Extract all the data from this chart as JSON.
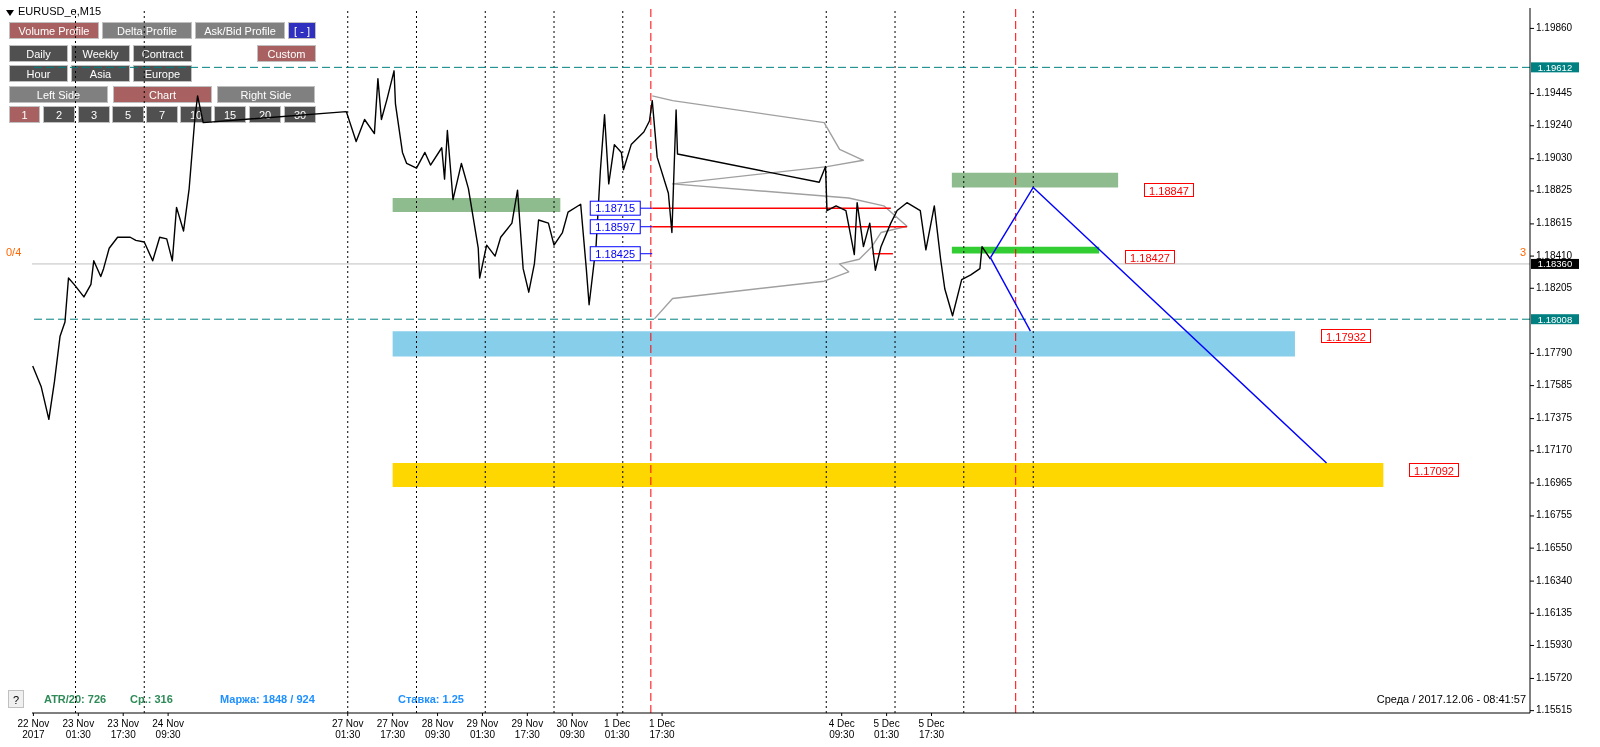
{
  "chart_data": {
    "type": "line",
    "title": "EURUSD_e,M15",
    "xlim": [
      "2017-11-22T09:00",
      "2017-12-14T14:45"
    ],
    "ylim": [
      1.155,
      1.1999
    ],
    "xticks": [
      {
        "value": "2017-11-22T09:30",
        "label": "22 Nov 2017"
      },
      {
        "value": "2017-11-23T01:30",
        "label": "23 Nov 01:30"
      },
      {
        "value": "2017-11-23T17:30",
        "label": "23 Nov 17:30"
      },
      {
        "value": "2017-11-24T09:30",
        "label": "24 Nov 09:30"
      },
      {
        "value": "2017-11-27T01:30",
        "label": "27 Nov 01:30"
      },
      {
        "value": "2017-11-27T17:30",
        "label": "27 Nov 17:30"
      },
      {
        "value": "2017-11-28T09:30",
        "label": "28 Nov 09:30"
      },
      {
        "value": "2017-11-29T01:30",
        "label": "29 Nov 01:30"
      },
      {
        "value": "2017-11-29T17:30",
        "label": "29 Nov 17:30"
      },
      {
        "value": "2017-11-30T09:30",
        "label": "30 Nov 09:30"
      },
      {
        "value": "2017-12-01T01:30",
        "label": "1 Dec 01:30"
      },
      {
        "value": "2017-12-01T17:30",
        "label": "1 Dec 17:30"
      },
      {
        "value": "2017-12-04T09:30",
        "label": "4 Dec 09:30"
      },
      {
        "value": "2017-12-05T01:30",
        "label": "5 Dec 01:30"
      },
      {
        "value": "2017-12-05T17:30",
        "label": "5 Dec 17:30"
      }
    ],
    "yticks": [
      {
        "value": 1.1986,
        "label": "1.19860"
      },
      {
        "value": 1.19445,
        "label": "1.19445"
      },
      {
        "value": 1.1924,
        "label": "1.19240"
      },
      {
        "value": 1.1903,
        "label": "1.19030"
      },
      {
        "value": 1.18825,
        "label": "1.18825"
      },
      {
        "value": 1.18615,
        "label": "1.18615"
      },
      {
        "value": 1.1841,
        "label": "1.18410"
      },
      {
        "value": 1.18205,
        "label": "1.18205"
      },
      {
        "value": 1.1779,
        "label": "1.17790"
      },
      {
        "value": 1.17585,
        "label": "1.17585"
      },
      {
        "value": 1.17375,
        "label": "1.17375"
      },
      {
        "value": 1.1717,
        "label": "1.17170"
      },
      {
        "value": 1.16965,
        "label": "1.16965"
      },
      {
        "value": 1.16755,
        "label": "1.16755"
      },
      {
        "value": 1.1655,
        "label": "1.16550"
      },
      {
        "value": 1.1634,
        "label": "1.16340"
      },
      {
        "value": 1.16135,
        "label": "1.16135"
      },
      {
        "value": 1.1593,
        "label": "1.15930"
      },
      {
        "value": 1.1572,
        "label": "1.15720"
      },
      {
        "value": 1.15515,
        "label": "1.15515"
      }
    ],
    "series": [
      {
        "type": "area",
        "color": "#8fbc8f",
        "x": [
          "2017-11-27T17:30",
          "2017-11-30T05:15"
        ],
        "values": [
          null,
          null
        ],
        "lower": [
          1.1869,
          1.1869
        ],
        "upper": [
          1.1878,
          1.1878
        ]
      },
      {
        "type": "area",
        "color": "#8fbc8f",
        "x": [
          "2017-12-06T00:45",
          "2017-12-08T12:00"
        ],
        "values": [
          null,
          null
        ],
        "lower": [
          1.18847,
          1.18847
        ],
        "upper": [
          1.1894,
          1.1894
        ]
      },
      {
        "type": "area",
        "color": "#32cd32",
        "x": [
          "2017-12-06T00:45",
          "2017-12-08T05:15"
        ],
        "values": [
          null,
          null
        ],
        "lower": [
          1.18427,
          1.18427
        ],
        "upper": [
          1.1847,
          1.1847
        ]
      },
      {
        "type": "area",
        "color": "#87ceeb",
        "x": [
          "2017-11-27T17:30",
          "2017-12-11T03:00"
        ],
        "values": [
          null,
          null
        ],
        "lower": [
          1.1777,
          1.1777
        ],
        "upper": [
          1.17932,
          1.17932
        ]
      },
      {
        "type": "area",
        "color": "#ffd700",
        "x": [
          "2017-11-27T17:30",
          "2017-12-12T10:30"
        ],
        "values": [
          null,
          null
        ],
        "lower": [
          1.1694,
          1.1694
        ],
        "upper": [
          1.17092,
          1.17092
        ]
      },
      {
        "type": "line",
        "color": "#a0a0a0",
        "x": [
          "2017-12-01T14:00",
          "2017-12-01T21:15",
          "2017-12-04T03:15",
          "2017-12-04T08:45",
          "2017-12-04T17:15",
          "2017-12-04T04:15",
          "2017-12-01T21:15",
          "2017-12-04T12:00",
          "2017-12-05T00:30",
          "2017-12-05T08:45",
          "2017-12-04T23:30",
          "2017-12-04T20:15",
          "2017-12-04T15:45",
          "2017-12-04T08:45",
          "2017-12-04T12:00",
          "2017-12-04T03:15",
          "2017-12-01T21:15",
          "2017-12-01T14:45"
        ],
        "values": [
          1.1943,
          1.194,
          1.1926,
          1.1909,
          1.1902,
          1.1898,
          1.1887,
          1.1878,
          1.1873,
          1.186,
          1.1856,
          1.1847,
          1.1839,
          1.1836,
          1.1831,
          1.1825,
          1.1814,
          1.1801
        ]
      },
      {
        "type": "line",
        "color": "#ff0000",
        "x": [
          "2017-12-01T14:00",
          "2017-12-05T03:00"
        ],
        "values": [
          1.18715,
          1.18715
        ]
      },
      {
        "type": "line",
        "color": "#ff0000",
        "x": [
          "2017-12-01T14:00",
          "2017-12-05T08:45"
        ],
        "values": [
          1.18597,
          1.18597
        ]
      },
      {
        "type": "line",
        "color": "#ff0000",
        "x": [
          "2017-12-04T20:30",
          "2017-12-05T03:45"
        ],
        "values": [
          1.18425,
          1.18425
        ]
      },
      {
        "color": "#000000",
        "x": [
          "2017-11-22T09:15",
          "2017-11-22T12:15",
          "2017-11-22T15:00",
          "2017-11-22T17:00",
          "2017-11-22T19:00",
          "2017-11-22T20:45",
          "2017-11-22T22:00",
          "2017-11-23T00:00",
          "2017-11-23T03:30",
          "2017-11-23T06:00",
          "2017-11-23T07:00",
          "2017-11-23T09:30",
          "2017-11-23T10:30",
          "2017-11-23T12:30",
          "2017-11-23T15:30",
          "2017-11-23T20:00",
          "2017-11-23T22:00",
          "2017-11-24T01:00",
          "2017-11-24T04:00",
          "2017-11-24T06:30",
          "2017-11-24T09:00",
          "2017-11-24T11:00",
          "2017-11-24T12:30",
          "2017-11-24T15:00",
          "2017-11-24T17:00",
          "2017-11-24T19:00",
          "2017-11-24T20:00",
          "2017-11-24T22:00",
          "2017-11-27T01:00",
          "2017-11-27T04:30",
          "2017-11-27T07:30",
          "2017-11-27T11:00",
          "2017-11-27T12:15",
          "2017-11-27T13:30",
          "2017-11-27T15:30",
          "2017-11-27T18:00",
          "2017-11-27T18:30",
          "2017-11-27T21:00",
          "2017-11-27T22:30",
          "2017-11-28T02:00",
          "2017-11-28T05:00",
          "2017-11-28T07:00",
          "2017-11-28T11:00",
          "2017-11-28T12:00",
          "2017-11-28T13:00",
          "2017-11-28T15:00",
          "2017-11-28T18:00",
          "2017-11-28T20:30",
          "2017-11-29T00:00",
          "2017-11-29T00:30",
          "2017-11-29T03:00",
          "2017-11-29T06:00",
          "2017-11-29T08:00",
          "2017-11-29T12:00",
          "2017-11-29T14:00",
          "2017-11-29T16:00",
          "2017-11-29T18:00",
          "2017-11-29T20:00",
          "2017-11-29T21:30",
          "2017-11-30T01:00",
          "2017-11-30T03:00",
          "2017-11-30T06:00",
          "2017-11-30T08:00",
          "2017-11-30T12:30",
          "2017-11-30T14:30",
          "2017-11-30T15:30",
          "2017-11-30T18:00",
          "2017-11-30T19:30",
          "2017-11-30T21:00",
          "2017-11-30T22:30",
          "2017-12-01T00:30",
          "2017-12-01T03:00",
          "2017-12-01T03:45",
          "2017-12-01T06:30",
          "2017-12-01T11:00",
          "2017-12-01T13:00",
          "2017-12-01T14:00",
          "2017-12-01T15:45",
          "2017-12-01T19:45",
          "2017-12-01T21:00",
          "2017-12-01T22:30",
          "2017-12-01T23:00",
          "2017-12-04T01:30",
          "2017-12-04T03:45",
          "2017-12-04T04:15",
          "2017-12-04T07:30",
          "2017-12-04T11:00",
          "2017-12-04T14:00",
          "2017-12-04T15:00",
          "2017-12-04T17:15",
          "2017-12-04T19:30",
          "2017-12-04T21:30",
          "2017-12-04T23:30",
          "2017-12-05T03:00",
          "2017-12-05T05:15",
          "2017-12-05T08:45",
          "2017-12-05T13:30",
          "2017-12-05T15:30",
          "2017-12-05T18:30",
          "2017-12-05T20:45",
          "2017-12-05T22:15",
          "2017-12-06T01:00",
          "2017-12-06T04:15",
          "2017-12-06T07:30",
          "2017-12-06T10:45",
          "2017-12-06T11:30",
          "2017-12-06T14:30"
        ],
        "values": [
          1.1771,
          1.1758,
          1.1737,
          1.1761,
          1.179,
          1.1799,
          1.1827,
          1.1823,
          1.1815,
          1.1823,
          1.1838,
          1.1828,
          1.1833,
          1.1846,
          1.1853,
          1.1853,
          1.1851,
          1.185,
          1.1838,
          1.1853,
          1.1852,
          1.1838,
          1.1872,
          1.1857,
          1.1884,
          1.1928,
          1.1943,
          1.1926,
          1.1933,
          1.1914,
          1.1928,
          1.1919,
          1.1954,
          1.1928,
          1.1941,
          1.1959,
          1.1938,
          1.1907,
          1.19,
          1.1897,
          1.1907,
          1.1899,
          1.191,
          1.189,
          1.1921,
          1.1877,
          1.19,
          1.1884,
          1.1846,
          1.1827,
          1.1848,
          1.1841,
          1.1853,
          1.1862,
          1.1883,
          1.1833,
          1.1818,
          1.1836,
          1.1864,
          1.1862,
          1.1848,
          1.1856,
          1.1869,
          1.1874,
          1.1833,
          1.181,
          1.1848,
          1.1895,
          1.1931,
          1.1887,
          1.1912,
          1.1907,
          1.1896,
          1.1912,
          1.192,
          1.1927,
          1.194,
          1.1904,
          1.1881,
          1.1856,
          1.1934,
          1.1906,
          1.1888,
          1.1898,
          1.187,
          1.1873,
          1.187,
          1.1842,
          1.1875,
          1.1847,
          1.1862,
          1.1832,
          1.1847,
          1.1862,
          1.187,
          1.1875,
          1.187,
          1.1845,
          1.1873,
          1.1839,
          1.182,
          1.1803,
          1.1826,
          1.1829,
          1.1833,
          1.1847,
          1.1839
        ]
      },
      {
        "type": "line",
        "color": "#0000ff",
        "x": [
          "2017-12-06T14:30",
          "2017-12-07T05:45",
          "2017-12-11T14:15"
        ],
        "values": [
          1.184,
          1.18847,
          1.17092
        ]
      },
      {
        "type": "line",
        "color": "#0000ff",
        "x": [
          "2017-12-06T14:30",
          "2017-12-07T04:45"
        ],
        "values": [
          1.184,
          1.17932
        ]
      }
    ],
    "ref_lines": [
      {
        "axis": "x",
        "value": "2017-11-23T00:30",
        "color": "#000000",
        "line_style": "dotted"
      },
      {
        "axis": "x",
        "value": "2017-11-24T01:00",
        "color": "#000000",
        "line_style": "dotted"
      },
      {
        "axis": "x",
        "value": "2017-11-27T01:30",
        "color": "#000000",
        "line_style": "dotted"
      },
      {
        "axis": "x",
        "value": "2017-11-28T02:00",
        "color": "#000000",
        "line_style": "dotted"
      },
      {
        "axis": "x",
        "value": "2017-11-29T02:30",
        "color": "#000000",
        "line_style": "dotted"
      },
      {
        "axis": "x",
        "value": "2017-11-30T03:00",
        "color": "#000000",
        "line_style": "dotted"
      },
      {
        "axis": "x",
        "value": "2017-12-01T03:30",
        "color": "#000000",
        "line_style": "dotted"
      },
      {
        "axis": "x",
        "value": "2017-12-04T04:00",
        "color": "#000000",
        "line_style": "dotted"
      },
      {
        "axis": "x",
        "value": "2017-12-05T04:30",
        "color": "#000000",
        "line_style": "dotted"
      },
      {
        "axis": "x",
        "value": "2017-12-06T05:00",
        "color": "#000000",
        "line_style": "dotted"
      },
      {
        "axis": "x",
        "value": "2017-12-07T05:45",
        "color": "#000000",
        "line_style": "dotted"
      },
      {
        "axis": "x",
        "value": "2017-12-01T13:30",
        "color": "#ff0000",
        "line_style": "dashed"
      },
      {
        "axis": "x",
        "value": "2017-12-06T23:30",
        "color": "#ff0000",
        "line_style": "dashed"
      },
      {
        "axis": "y",
        "value": 1.19612,
        "label": "1.19612",
        "color": "#008080",
        "line_style": "dashed"
      },
      {
        "axis": "y",
        "value": 1.18008,
        "label": "1.18008",
        "color": "#008080",
        "line_style": "dashed"
      },
      {
        "axis": "y",
        "value": 1.1836,
        "label": "1.18360",
        "color": "#c0c0c0",
        "line_style": "solid"
      }
    ],
    "annotations": [
      "Volume Profile",
      "Delta Profile",
      "Ask/Bid Profile",
      "[ - ]",
      "Daily",
      "Weekly",
      "Contract",
      "Custom",
      "Hour",
      "Asia",
      "Europe",
      "Left Side",
      "Chart",
      "Right Side",
      "1",
      "2",
      "3",
      "5",
      "7",
      "10",
      "15",
      "20",
      "30",
      "0/4",
      "3",
      "?",
      "ATR/20: 726",
      "Ср.: 316",
      "Маржа: 1848 / 924",
      "Ставка: 1.25",
      "Среда / 2017.12.06 - 08:41:57",
      "1.18847",
      "1.18427",
      "1.17932",
      "1.17092",
      {
        "text": "1.18715",
        "x": "2017-12-01T14:00",
        "y": 1.18715
      },
      {
        "text": "1.18597",
        "x": "2017-12-01T14:00",
        "y": 1.18597
      },
      {
        "text": "1.18425",
        "x": "2017-12-01T14:00",
        "y": 1.18425
      }
    ]
  }
}
